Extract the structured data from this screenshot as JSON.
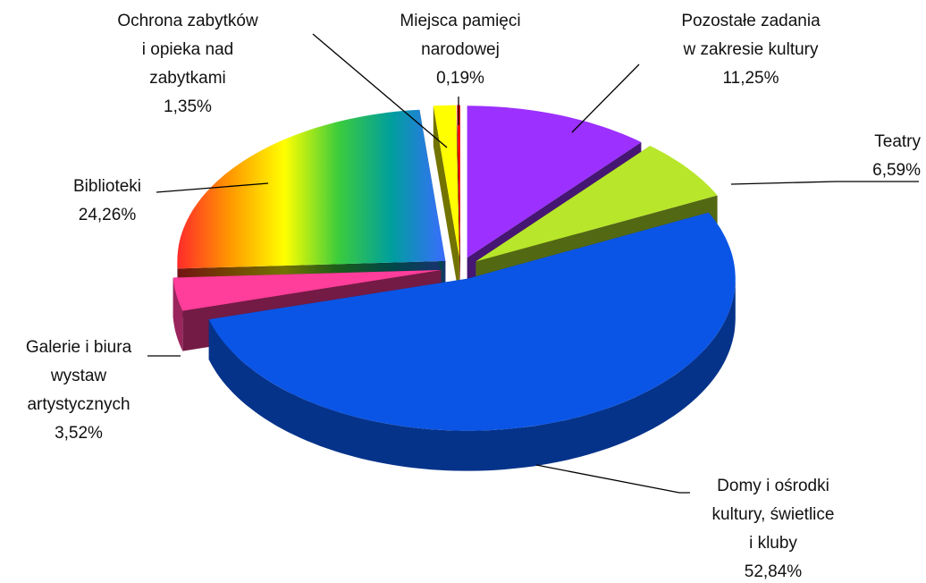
{
  "chart_data": {
    "type": "pie3d",
    "categories": [
      "Pozostałe zadania\nw zakresie kultury",
      "Teatry",
      "Domy i ośrodki\nkultury, świetlice\ni kluby",
      "Galerie i biura\nwystaw\nartystycznych",
      "Biblioteki",
      "Ochrona zabytków\ni opieka nad\nzabytkami",
      "Miejsca pamięci\nnarodowej"
    ],
    "values": [
      11.25,
      6.59,
      52.84,
      3.52,
      24.26,
      1.35,
      0.19
    ],
    "value_labels": [
      "11,25%",
      "6,59%",
      "52,84%",
      "3,52%",
      "24,26%",
      "1,35%",
      "0,19%"
    ],
    "colors": [
      "#9b30ff",
      "#b8e62a",
      "#0a55e6",
      "#ff3d9a",
      [
        "#ff2a2a",
        "#ff9a00",
        "#ffff00",
        "#3ccc3c",
        "#009e9e",
        "#3a6cff"
      ],
      "#ffff00",
      "#ff0000"
    ]
  }
}
